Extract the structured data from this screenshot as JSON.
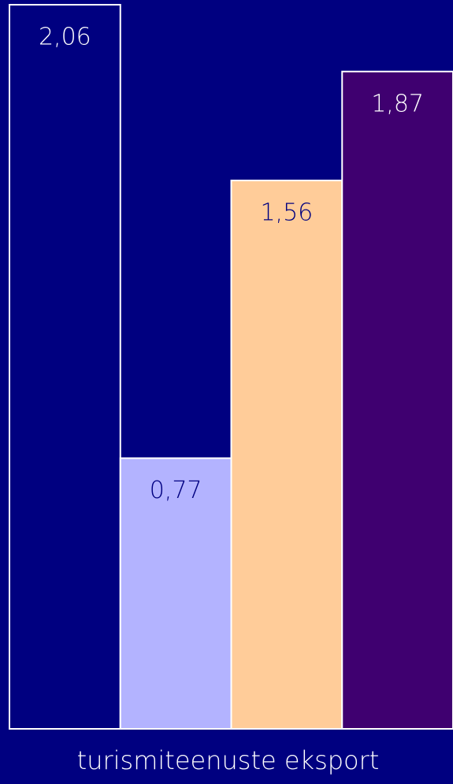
{
  "chart_data": {
    "type": "bar",
    "categories": [
      "turismiteenuste eksport"
    ],
    "series": [
      {
        "color": "#000080",
        "values": [
          2.06
        ],
        "value_labels": [
          "2,06"
        ]
      },
      {
        "color": "#b3b3ff",
        "values": [
          0.77
        ],
        "value_labels": [
          "0,77"
        ]
      },
      {
        "color": "#ffcc99",
        "values": [
          1.56
        ],
        "value_labels": [
          "1,56"
        ]
      },
      {
        "color": "#3f0070",
        "values": [
          1.87
        ],
        "value_labels": [
          "1,87"
        ]
      }
    ],
    "ylim": [
      0,
      2.06
    ]
  }
}
